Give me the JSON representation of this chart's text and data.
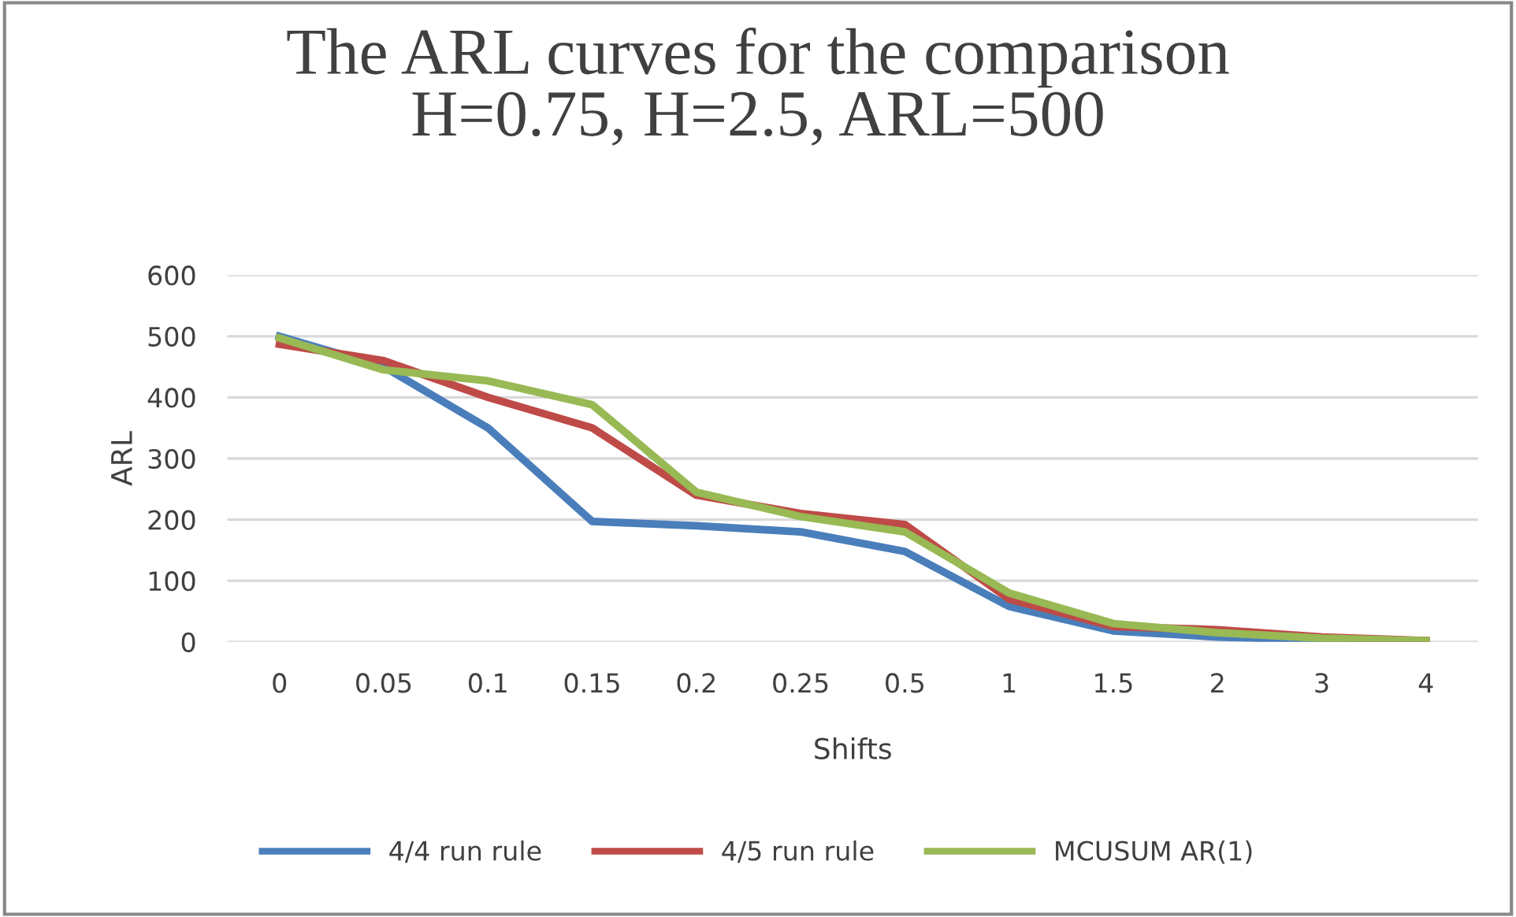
{
  "chart_data": {
    "type": "line",
    "title": "The ARL curves for the comparison\nH=0.75, H=2.5, ARL=500",
    "xlabel": "Shifts",
    "ylabel": "ARL",
    "categories": [
      "0",
      "0.05",
      "0.1",
      "0.15",
      "0.2",
      "0.25",
      "0.5",
      "1",
      "1.5",
      "2",
      "3",
      "4"
    ],
    "series": [
      {
        "name": "4/4 run rule",
        "color": "#4a7ebb",
        "values": [
          500,
          450,
          350,
          197,
          190,
          180,
          148,
          58,
          18,
          8,
          3,
          1
        ]
      },
      {
        "name": "4/5 run rule",
        "color": "#be4b48",
        "values": [
          487,
          460,
          400,
          350,
          240,
          210,
          192,
          70,
          25,
          20,
          8,
          2
        ]
      },
      {
        "name": "MCUSUM AR(1)",
        "color": "#98b954",
        "values": [
          497,
          445,
          427,
          388,
          245,
          205,
          180,
          80,
          30,
          15,
          6,
          2
        ]
      }
    ],
    "ylim": [
      0,
      600
    ],
    "yticks": [
      0,
      100,
      200,
      300,
      400,
      500,
      600
    ],
    "grid": "y",
    "legend": "bottom",
    "marker": "none",
    "line_style": "solid"
  }
}
